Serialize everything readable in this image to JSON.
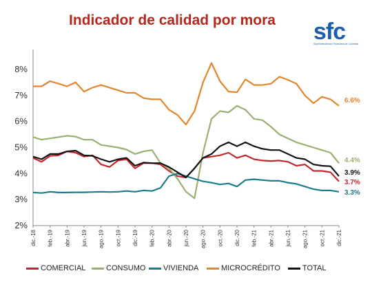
{
  "title": "Indicador de calidad por mora",
  "logo": {
    "text": "sfc",
    "subtitle": "Superintendencia Financiera de Colombia"
  },
  "chart_data": {
    "type": "line",
    "title": "Indicador de calidad por mora",
    "xlabel": "",
    "ylabel": "",
    "ylim": [
      2,
      8.5
    ],
    "yticks": [
      "2%",
      "3%",
      "4%",
      "5%",
      "6%",
      "7%",
      "8%"
    ],
    "grid": false,
    "legend_position": "bottom",
    "x": [
      "dic.-18",
      "ene.-19",
      "feb.-19",
      "mar.-19",
      "abr.-19",
      "may.-19",
      "jun.-19",
      "jul.-19",
      "ago.-19",
      "sep.-19",
      "oct.-19",
      "nov.-19",
      "dic.-19",
      "ene.-20",
      "feb.-20",
      "mar.-20",
      "abr.-20",
      "may.-20",
      "jun.-20",
      "jul.-20",
      "ago.-20",
      "sep.-20",
      "oct.-20",
      "nov.-20",
      "dic.-20",
      "ene.-21",
      "feb.-21",
      "mar.-21",
      "abr.-21",
      "may.-21",
      "jun.-21",
      "jul.-21",
      "ago.-21",
      "sep.-21",
      "oct.-21",
      "nov.-21",
      "dic.-21"
    ],
    "x_tick_labels": [
      "dic.-18",
      "feb.-19",
      "abr.-19",
      "jun.-19",
      "ago.-19",
      "oct.-19",
      "dic.-19",
      "feb.-20",
      "abr.-20",
      "jun.-20",
      "ago.-20",
      "oct.-20",
      "dic.-20",
      "feb.-21",
      "abr.-21",
      "jun.-21",
      "ago.-21",
      "oct.-21",
      "dic.-21"
    ],
    "series": [
      {
        "name": "COMERCIAL",
        "color": "#c0272d",
        "end_label": "3.7%",
        "values": [
          4.6,
          4.45,
          4.68,
          4.7,
          4.85,
          4.8,
          4.65,
          4.7,
          4.35,
          4.25,
          4.5,
          4.55,
          4.2,
          4.4,
          4.4,
          4.35,
          4.1,
          3.9,
          3.85,
          4.2,
          4.6,
          4.65,
          4.7,
          4.8,
          4.6,
          4.7,
          4.55,
          4.5,
          4.48,
          4.5,
          4.45,
          4.3,
          4.35,
          4.1,
          4.1,
          4.05,
          3.7
        ]
      },
      {
        "name": "CONSUMO",
        "color": "#9aaf6f",
        "end_label": "4.4%",
        "values": [
          5.4,
          5.3,
          5.35,
          5.4,
          5.45,
          5.42,
          5.3,
          5.3,
          5.1,
          5.05,
          5.0,
          4.92,
          4.75,
          4.85,
          4.9,
          4.4,
          4.2,
          3.8,
          3.3,
          3.05,
          4.8,
          6.1,
          6.4,
          6.35,
          6.6,
          6.45,
          6.1,
          6.05,
          5.8,
          5.5,
          5.35,
          5.2,
          5.1,
          5.0,
          4.9,
          4.8,
          4.4
        ]
      },
      {
        "name": "VIVIENDA",
        "color": "#1a7b8c",
        "end_label": "3.3%",
        "values": [
          3.27,
          3.25,
          3.3,
          3.27,
          3.27,
          3.28,
          3.28,
          3.29,
          3.3,
          3.29,
          3.3,
          3.33,
          3.3,
          3.35,
          3.33,
          3.45,
          3.9,
          4.0,
          3.9,
          3.8,
          3.7,
          3.65,
          3.58,
          3.62,
          3.5,
          3.75,
          3.78,
          3.75,
          3.72,
          3.72,
          3.65,
          3.6,
          3.5,
          3.4,
          3.35,
          3.35,
          3.3
        ]
      },
      {
        "name": "MICROCRÉDITO",
        "color": "#e2852c",
        "end_label": "6.6%",
        "values": [
          7.35,
          7.35,
          7.55,
          7.45,
          7.35,
          7.5,
          7.15,
          7.3,
          7.4,
          7.3,
          7.2,
          7.1,
          7.1,
          6.9,
          6.85,
          6.85,
          6.45,
          6.25,
          5.88,
          6.4,
          7.5,
          8.25,
          7.55,
          7.15,
          7.12,
          7.62,
          7.4,
          7.4,
          7.45,
          7.72,
          7.6,
          7.45,
          7.0,
          6.7,
          6.95,
          6.85,
          6.6
        ]
      },
      {
        "name": "TOTAL",
        "color": "#111111",
        "end_label": "3.9%",
        "values": [
          4.65,
          4.55,
          4.75,
          4.75,
          4.85,
          4.88,
          4.7,
          4.68,
          4.55,
          4.45,
          4.55,
          4.6,
          4.3,
          4.42,
          4.4,
          4.4,
          4.25,
          4.05,
          3.85,
          4.2,
          4.6,
          4.75,
          5.05,
          5.2,
          5.05,
          5.2,
          5.05,
          4.95,
          4.9,
          4.9,
          4.75,
          4.6,
          4.55,
          4.35,
          4.3,
          4.28,
          3.9
        ]
      }
    ]
  }
}
